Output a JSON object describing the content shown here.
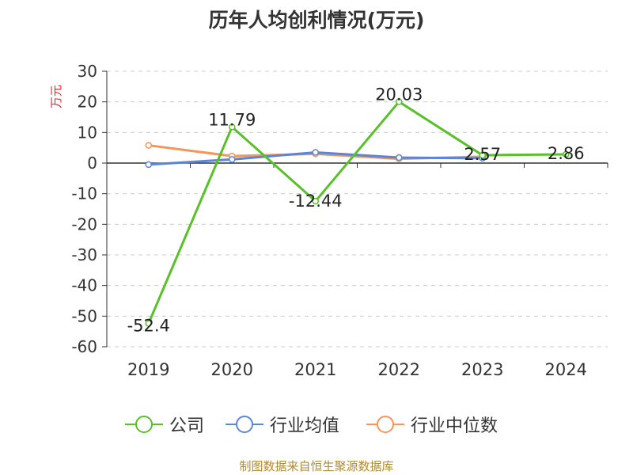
{
  "chart_data": {
    "type": "line",
    "title": "历年人均创利情况(万元)",
    "ylabel": "万元",
    "xlabel": "",
    "categories": [
      "2019",
      "2020",
      "2021",
      "2022",
      "2023",
      "2024"
    ],
    "ylim": [
      -60,
      30
    ],
    "yticks": [
      30,
      20,
      10,
      0,
      -10,
      -20,
      -30,
      -40,
      -50,
      -60
    ],
    "grid": true,
    "legend_position": "bottom",
    "series": [
      {
        "name": "公司",
        "color": "#5ac02a",
        "values": [
          -52.4,
          11.79,
          -12.44,
          20.03,
          2.57,
          2.86
        ],
        "labels": [
          "-52.4",
          "11.79",
          "-12.44",
          "20.03",
          "2.57",
          "2.86"
        ]
      },
      {
        "name": "行业均值",
        "color": "#5b86d8",
        "values": [
          -0.5,
          1.2,
          3.5,
          1.8,
          1.6,
          null
        ]
      },
      {
        "name": "行业中位数",
        "color": "#f5955a",
        "values": [
          5.8,
          2.3,
          3.0,
          1.4,
          2.1,
          null
        ]
      }
    ]
  },
  "source_text": "制图数据来自恒生聚源数据库"
}
